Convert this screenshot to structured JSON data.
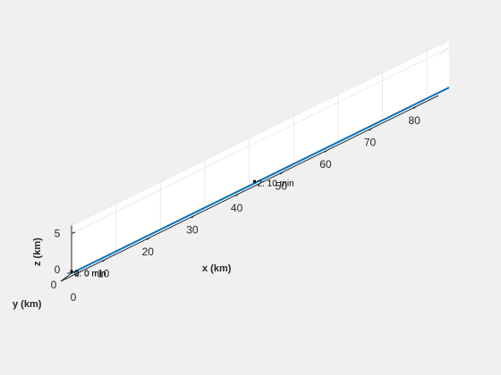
{
  "chart_data": {
    "type": "line",
    "title": "",
    "xlabel": "x (km)",
    "ylabel": "y (km)",
    "zlabel": "z (km)",
    "x_ticks": [
      10,
      20,
      30,
      40,
      50,
      60,
      70,
      80
    ],
    "y_ticks": [
      0
    ],
    "z_ticks": [
      0,
      5
    ],
    "x_zero_label": "0",
    "xlim": [
      0,
      85
    ],
    "ylim": [
      0,
      1
    ],
    "zlim": [
      0,
      6
    ],
    "grid": true,
    "series": [
      {
        "color": "#0072bd",
        "x": [
          0,
          41.2,
          85
        ],
        "y": [
          0,
          0,
          0
        ],
        "z": [
          0,
          0,
          0
        ]
      }
    ],
    "annotations": [
      {
        "x": 0,
        "text": "0:   0 min"
      },
      {
        "x": 0,
        "text": "1:   0 min"
      },
      {
        "x": 41.2,
        "text": "2:   10 min"
      }
    ]
  }
}
